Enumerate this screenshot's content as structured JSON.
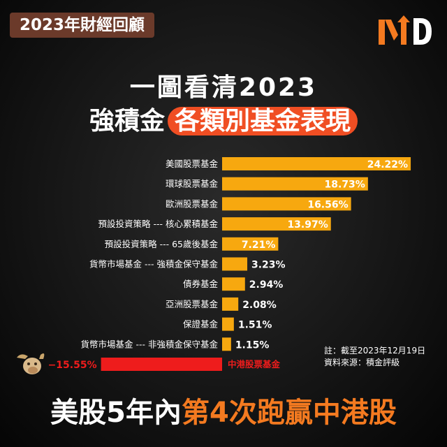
{
  "header": {
    "badge": "2023年財經回顧",
    "brand": "MD",
    "title_line1": "一圖看清2023",
    "title_line2_plain": "強積金",
    "title_line2_highlight": "各類別基金表現",
    "note_line1": "註：截至2023年12月19日",
    "note_line2": "資料來源：積金評級",
    "bottom_plain": "美股5年內",
    "bottom_highlight": "第4次跑贏中港股"
  },
  "colors": {
    "positive_bar": "#f7a80f",
    "negative_bar": "#ee1c1c",
    "highlight": "#f04e23",
    "bottom_accent": "#f47a20"
  },
  "icons": [
    "md-logo-icon",
    "bull-head-icon"
  ],
  "chart_data": {
    "type": "bar",
    "orientation": "horizontal",
    "categories": [
      "美國股票基金",
      "環球股票基金",
      "歐洲股票基金",
      "預設投資策略 --- 核心累積基金",
      "預設投資策略 --- 65歲後基金",
      "貨幣市場基金 --- 強積金保守基金",
      "債券基金",
      "亞洲股票基金",
      "保證基金",
      "貨幣市場基金 --- 非強積金保守基金",
      "中港股票基金"
    ],
    "values": [
      24.22,
      18.73,
      16.56,
      13.97,
      7.21,
      3.23,
      2.94,
      2.08,
      1.51,
      1.15,
      -15.55
    ],
    "value_labels": [
      "24.22%",
      "18.73%",
      "16.56%",
      "13.97%",
      "7.21%",
      "3.23%",
      "2.94%",
      "2.08%",
      "1.51%",
      "1.15%",
      "−15.55%"
    ],
    "unit": "%",
    "grid": false,
    "legend": "none"
  }
}
